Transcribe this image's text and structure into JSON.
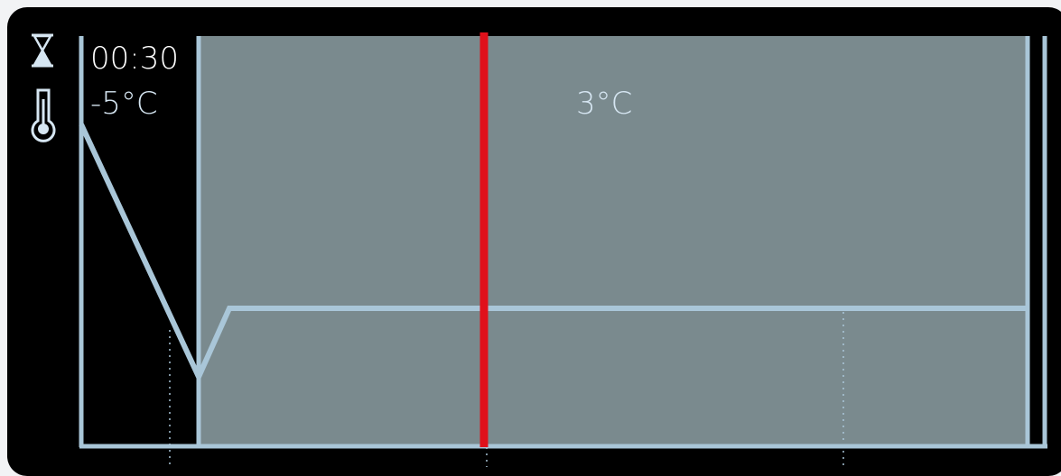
{
  "timer": {
    "icon": "hourglass-icon",
    "value": "00:30"
  },
  "temperature": {
    "icon": "thermometer-icon",
    "start_value": "-5°C",
    "phase_value": "3°C"
  },
  "colors": {
    "background": "#000000",
    "phase_fill": "#7a8a8e",
    "curve": "#a9c6d8",
    "cursor": "#e0111b",
    "text": "#d6e6f2"
  }
}
